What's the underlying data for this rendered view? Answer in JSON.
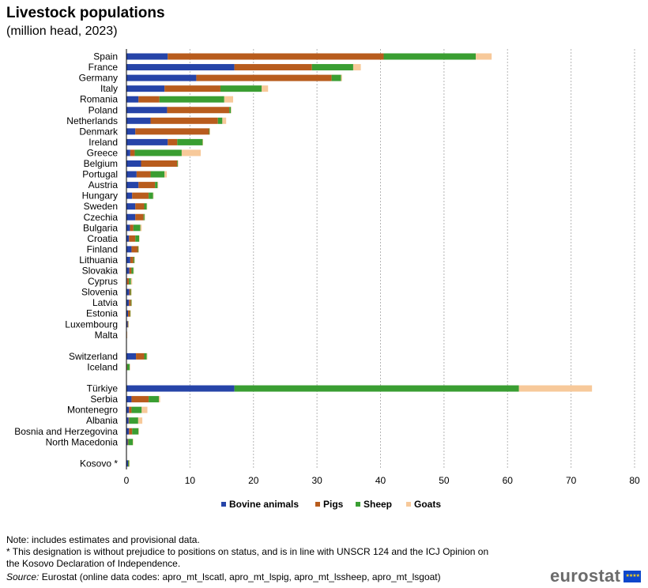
{
  "header": {
    "title": "Livestock populations",
    "subtitle": "(million head, 2023)"
  },
  "chart_data": {
    "type": "bar",
    "orientation": "horizontal",
    "stacked": true,
    "title": "Livestock populations",
    "subtitle": "(million head, 2023)",
    "xlim": [
      0,
      80
    ],
    "xticks": [
      0,
      10,
      20,
      30,
      40,
      50,
      60,
      70,
      80
    ],
    "grid": "vertical dashed",
    "legend_position": "bottom",
    "colors": {
      "bovine": "#2644a8",
      "pigs": "#b85c1d",
      "sheep": "#3a9e32",
      "goats": "#f7c99a"
    },
    "series": [
      {
        "name": "Bovine animals",
        "key": "bovine"
      },
      {
        "name": "Pigs",
        "key": "pigs"
      },
      {
        "name": "Sheep",
        "key": "sheep"
      },
      {
        "name": "Goats",
        "key": "goats"
      }
    ],
    "groups": [
      {
        "rows": [
          {
            "label": "Spain",
            "bovine": 6.5,
            "pigs": 34.0,
            "sheep": 14.5,
            "goats": 2.5
          },
          {
            "label": "France",
            "bovine": 17.0,
            "pigs": 12.2,
            "sheep": 6.5,
            "goats": 1.2
          },
          {
            "label": "Germany",
            "bovine": 11.0,
            "pigs": 21.3,
            "sheep": 1.5,
            "goats": 0.15
          },
          {
            "label": "Italy",
            "bovine": 6.0,
            "pigs": 8.8,
            "sheep": 6.5,
            "goats": 1.0
          },
          {
            "label": "Romania",
            "bovine": 1.9,
            "pigs": 3.3,
            "sheep": 10.2,
            "goats": 1.4
          },
          {
            "label": "Poland",
            "bovine": 6.4,
            "pigs": 9.8,
            "sheep": 0.25,
            "goats": 0.05
          },
          {
            "label": "Netherlands",
            "bovine": 3.8,
            "pigs": 10.6,
            "sheep": 0.7,
            "goats": 0.6
          },
          {
            "label": "Denmark",
            "bovine": 1.4,
            "pigs": 11.6,
            "sheep": 0.1,
            "goats": 0.02
          },
          {
            "label": "Ireland",
            "bovine": 6.5,
            "pigs": 1.5,
            "sheep": 4.0,
            "goats": 0.05
          },
          {
            "label": "Greece",
            "bovine": 0.6,
            "pigs": 0.7,
            "sheep": 7.4,
            "goats": 3.0
          },
          {
            "label": "Belgium",
            "bovine": 2.3,
            "pigs": 5.7,
            "sheep": 0.1,
            "goats": 0.05
          },
          {
            "label": "Portugal",
            "bovine": 1.6,
            "pigs": 2.2,
            "sheep": 2.2,
            "goats": 0.35
          },
          {
            "label": "Austria",
            "bovine": 1.9,
            "pigs": 2.6,
            "sheep": 0.4,
            "goats": 0.1
          },
          {
            "label": "Hungary",
            "bovine": 0.9,
            "pigs": 2.6,
            "sheep": 0.7,
            "goats": 0.05
          },
          {
            "label": "Sweden",
            "bovine": 1.4,
            "pigs": 1.4,
            "sheep": 0.4,
            "goats": 0.02
          },
          {
            "label": "Czechia",
            "bovine": 1.4,
            "pigs": 1.3,
            "sheep": 0.15,
            "goats": 0.03
          },
          {
            "label": "Bulgaria",
            "bovine": 0.55,
            "pigs": 0.55,
            "sheep": 1.1,
            "goats": 0.2
          },
          {
            "label": "Croatia",
            "bovine": 0.4,
            "pigs": 1.0,
            "sheep": 0.6,
            "goats": 0.08
          },
          {
            "label": "Finland",
            "bovine": 0.8,
            "pigs": 1.0,
            "sheep": 0.1,
            "goats": 0.01
          },
          {
            "label": "Lithuania",
            "bovine": 0.6,
            "pigs": 0.5,
            "sheep": 0.15,
            "goats": 0.02
          },
          {
            "label": "Slovakia",
            "bovine": 0.45,
            "pigs": 0.35,
            "sheep": 0.3,
            "goats": 0.03
          },
          {
            "label": "Cyprus",
            "bovine": 0.1,
            "pigs": 0.3,
            "sheep": 0.3,
            "goats": 0.2
          },
          {
            "label": "Slovenia",
            "bovine": 0.45,
            "pigs": 0.2,
            "sheep": 0.1,
            "goats": 0.02
          },
          {
            "label": "Latvia",
            "bovine": 0.4,
            "pigs": 0.3,
            "sheep": 0.1,
            "goats": 0.01
          },
          {
            "label": "Estonia",
            "bovine": 0.25,
            "pigs": 0.3,
            "sheep": 0.08,
            "goats": 0.005
          },
          {
            "label": "Luxembourg",
            "bovine": 0.2,
            "pigs": 0.08,
            "sheep": 0.01,
            "goats": 0.005
          },
          {
            "label": "Malta",
            "bovine": 0.015,
            "pigs": 0.035,
            "sheep": 0.01,
            "goats": 0.005
          }
        ]
      },
      {
        "rows": [
          {
            "label": "Switzerland",
            "bovine": 1.5,
            "pigs": 1.3,
            "sheep": 0.4,
            "goats": 0.1
          },
          {
            "label": "Iceland",
            "bovine": 0.08,
            "pigs": 0.04,
            "sheep": 0.4,
            "goats": 0.002
          }
        ]
      },
      {
        "rows": [
          {
            "label": "Türkiye",
            "bovine": 17.0,
            "pigs": 0.0,
            "sheep": 44.8,
            "goats": 11.5
          },
          {
            "label": "Serbia",
            "bovine": 0.8,
            "pigs": 2.7,
            "sheep": 1.6,
            "goats": 0.2
          },
          {
            "label": "Montenegro",
            "bovine": 0.4,
            "pigs": 0.4,
            "sheep": 1.6,
            "goats": 0.9
          },
          {
            "label": "Albania",
            "bovine": 0.35,
            "pigs": 0.1,
            "sheep": 1.4,
            "goats": 0.65
          },
          {
            "label": "Bosnia and Herzegovina",
            "bovine": 0.4,
            "pigs": 0.5,
            "sheep": 1.0,
            "goats": 0.05
          },
          {
            "label": "North Macedonia",
            "bovine": 0.2,
            "pigs": 0.1,
            "sheep": 0.7,
            "goats": 0.08
          }
        ]
      },
      {
        "rows": [
          {
            "label": "Kosovo *",
            "bovine": 0.25,
            "pigs": 0.03,
            "sheep": 0.15,
            "goats": 0.03
          }
        ]
      }
    ]
  },
  "notes": {
    "line1": "Note: includes estimates and provisional data.",
    "line2": "* This designation is without prejudice to positions on status, and is in line with UNSCR 124 and the ICJ Opinion on",
    "line3": "the Kosovo Declaration of Independence.",
    "source_label": "Source:",
    "source_text": " Eurostat (online data codes: apro_mt_lscatl, apro_mt_lspig, apro_mt_lssheep, apro_mt_lsgoat)"
  },
  "logo": {
    "text": "eurostat",
    "icon": "eu-flag-icon"
  }
}
